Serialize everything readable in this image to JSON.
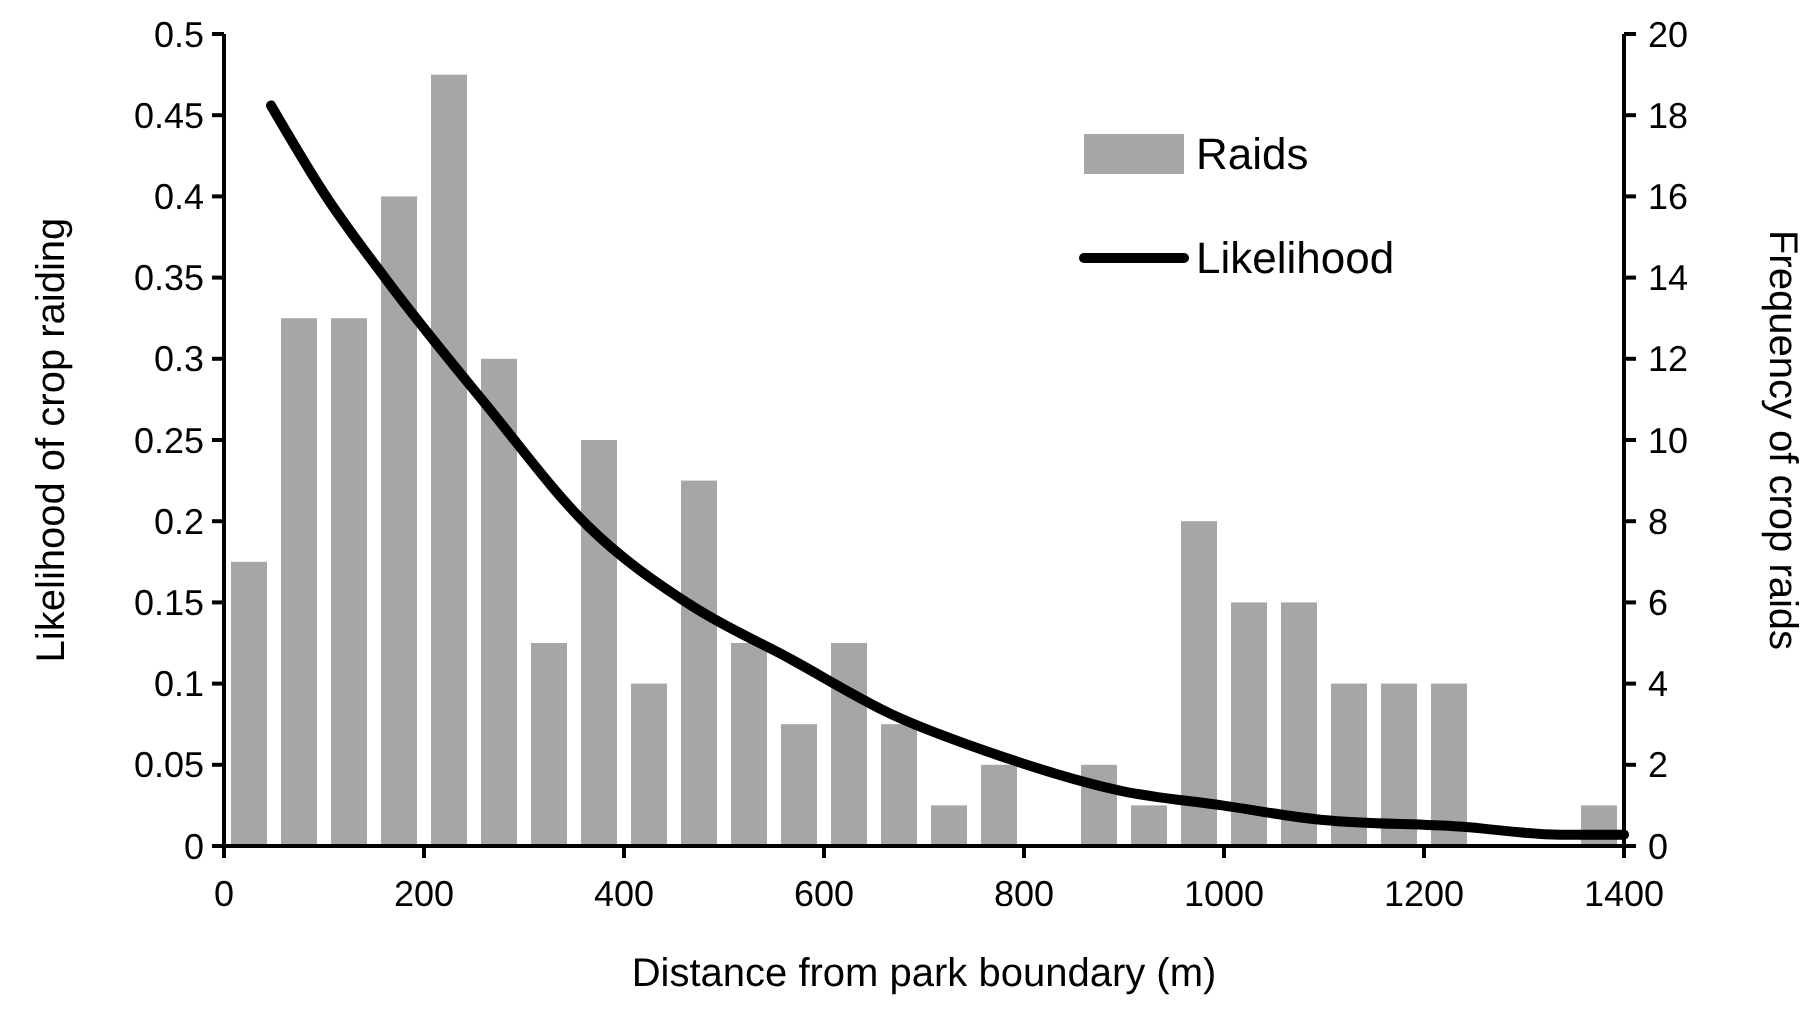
{
  "chart_data": {
    "type": "bar",
    "xlabel": "Distance from park boundary (m)",
    "ylabel": "Likelihood of crop raiding",
    "y2label": "Frequency of crop raids",
    "xlim": [
      0,
      1400
    ],
    "xticks": [
      0,
      200,
      400,
      600,
      800,
      1000,
      1200,
      1400
    ],
    "ylim": [
      0,
      0.5
    ],
    "yticks": [
      0,
      0.05,
      0.1,
      0.15,
      0.2,
      0.25,
      0.3,
      0.35,
      0.4,
      0.45,
      0.5
    ],
    "y2lim": [
      0,
      20
    ],
    "y2ticks": [
      0,
      2,
      4,
      6,
      8,
      10,
      12,
      14,
      16,
      18,
      20
    ],
    "legend": "top right",
    "grid": false,
    "series": [
      {
        "name": "Raids",
        "axis": "y2",
        "color": "#a6a6a6",
        "x": [
          25,
          75,
          125,
          175,
          225,
          275,
          325,
          375,
          425,
          475,
          525,
          575,
          625,
          675,
          725,
          775,
          825,
          875,
          925,
          975,
          1025,
          1075,
          1125,
          1175,
          1225,
          1275,
          1325,
          1375
        ],
        "values": [
          7,
          13,
          13,
          16,
          19,
          12,
          5,
          10,
          4,
          9,
          5,
          3,
          5,
          3,
          1,
          2,
          0,
          2,
          1,
          8,
          6,
          6,
          4,
          4,
          4,
          0,
          0,
          1
        ]
      },
      {
        "name": "Likelihood",
        "type": "line",
        "axis": "y",
        "color": "#000000",
        "marker": "none",
        "line_style": "solid",
        "x": [
          47,
          100,
          162,
          263,
          364,
          465,
          567,
          668,
          769,
          897,
          998,
          1099,
          1235,
          1336,
          1400
        ],
        "values": [
          0.456,
          0.402,
          0.349,
          0.271,
          0.197,
          0.149,
          0.115,
          0.081,
          0.057,
          0.034,
          0.025,
          0.016,
          0.012,
          0.007,
          0.007
        ]
      }
    ]
  }
}
